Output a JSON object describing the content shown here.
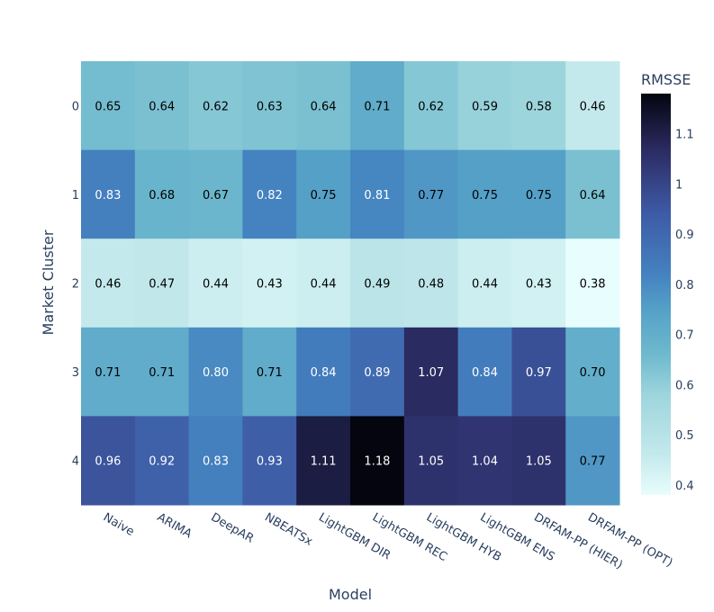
{
  "chart_data": {
    "type": "heatmap",
    "title": "",
    "xlabel": "Model",
    "ylabel": "Market Cluster",
    "x_categories": [
      "Naive",
      "ARIMA",
      "DeepAR",
      "NBEATSx",
      "LightGBM DIR",
      "LightGBM REC",
      "LightGBM HYB",
      "LightGBM ENS",
      "DRFAM-PP (HIER)",
      "DRFAM-PP (OPT)"
    ],
    "y_categories": [
      "0",
      "1",
      "2",
      "3",
      "4"
    ],
    "values": [
      [
        0.65,
        0.64,
        0.62,
        0.63,
        0.64,
        0.71,
        0.62,
        0.59,
        0.58,
        0.46
      ],
      [
        0.83,
        0.68,
        0.67,
        0.82,
        0.75,
        0.81,
        0.77,
        0.75,
        0.75,
        0.64
      ],
      [
        0.46,
        0.47,
        0.44,
        0.43,
        0.44,
        0.49,
        0.48,
        0.44,
        0.43,
        0.38
      ],
      [
        0.71,
        0.71,
        0.8,
        0.71,
        0.84,
        0.89,
        1.07,
        0.84,
        0.97,
        0.7
      ],
      [
        0.96,
        0.92,
        0.83,
        0.93,
        1.11,
        1.18,
        1.05,
        1.04,
        1.05,
        0.77
      ]
    ],
    "colorbar": {
      "title": "RMSSE",
      "range": [
        0.38,
        1.18
      ],
      "ticks": [
        0.4,
        0.5,
        0.6,
        0.7,
        0.8,
        0.9,
        1,
        1.1
      ],
      "tick_labels": [
        "0.4",
        "0.5",
        "0.6",
        "0.7",
        "0.8",
        "0.9",
        "1",
        "1.1"
      ]
    },
    "colorscale": [
      [
        0.0,
        "#e8fdfd"
      ],
      [
        0.1,
        "#c4e9ec"
      ],
      [
        0.25,
        "#9dd5dd"
      ],
      [
        0.35,
        "#6eb9cd"
      ],
      [
        0.45,
        "#57a4c8"
      ],
      [
        0.55,
        "#4482c0"
      ],
      [
        0.7,
        "#3e5ba6"
      ],
      [
        0.85,
        "#2d2e67"
      ],
      [
        1.0,
        "#04050f"
      ]
    ],
    "text_color_threshold": 0.5,
    "text_color_light": "#ffffff",
    "text_color_dark": "#000000",
    "value_format_decimals": 2
  }
}
